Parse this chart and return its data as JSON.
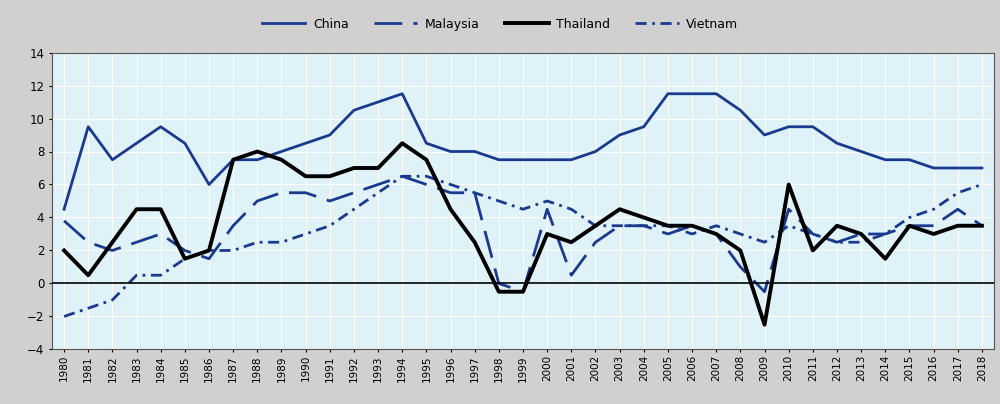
{
  "years": [
    1980,
    1981,
    1982,
    1983,
    1984,
    1985,
    1986,
    1987,
    1988,
    1989,
    1990,
    1991,
    1992,
    1993,
    1994,
    1995,
    1996,
    1997,
    1998,
    1999,
    2000,
    2001,
    2002,
    2003,
    2004,
    2005,
    2006,
    2007,
    2008,
    2009,
    2010,
    2011,
    2012,
    2013,
    2014,
    2015,
    2016,
    2017,
    2018
  ],
  "china": [
    4.5,
    9.5,
    7.5,
    8.5,
    9.5,
    8.5,
    6.0,
    7.5,
    7.5,
    8.0,
    8.5,
    9.0,
    10.5,
    11.0,
    11.5,
    8.5,
    8.0,
    8.0,
    7.5,
    7.5,
    7.5,
    7.5,
    8.0,
    9.0,
    9.5,
    11.5,
    11.5,
    11.5,
    10.5,
    9.0,
    9.5,
    9.5,
    8.5,
    8.0,
    7.5,
    7.5,
    7.0,
    7.0,
    7.0
  ],
  "malaysia": [
    3.8,
    2.5,
    2.0,
    2.5,
    3.0,
    2.0,
    1.5,
    3.5,
    5.0,
    5.5,
    5.5,
    5.0,
    5.5,
    6.0,
    6.5,
    6.0,
    5.5,
    5.5,
    0.0,
    -0.5,
    4.5,
    0.5,
    2.5,
    3.5,
    3.5,
    3.0,
    3.5,
    3.0,
    1.0,
    -0.5,
    4.5,
    3.0,
    2.5,
    3.0,
    3.0,
    3.5,
    3.5,
    4.5,
    3.5
  ],
  "thailand": [
    2.0,
    0.5,
    2.5,
    4.5,
    4.5,
    1.5,
    2.0,
    7.5,
    8.0,
    7.5,
    6.5,
    6.5,
    7.0,
    7.0,
    8.5,
    7.5,
    4.5,
    2.5,
    -0.5,
    -0.5,
    3.0,
    2.5,
    3.5,
    4.5,
    4.0,
    3.5,
    3.5,
    3.0,
    2.0,
    -2.5,
    6.0,
    2.0,
    3.5,
    3.0,
    1.5,
    3.5,
    3.0,
    3.5,
    3.5
  ],
  "vietnam": [
    -2.0,
    -1.5,
    -1.0,
    0.5,
    0.5,
    1.5,
    2.0,
    2.0,
    2.5,
    2.5,
    3.0,
    3.5,
    4.5,
    5.5,
    6.5,
    6.5,
    6.0,
    5.5,
    5.0,
    4.5,
    5.0,
    4.5,
    3.5,
    3.5,
    3.5,
    3.5,
    3.0,
    3.5,
    3.0,
    2.5,
    3.5,
    3.0,
    2.5,
    2.5,
    3.0,
    4.0,
    4.5,
    5.5,
    6.0
  ],
  "china_color": "#1a3a8f",
  "malaysia_color": "#1a3a8f",
  "thailand_color": "#000000",
  "vietnam_color": "#1a3a8f",
  "bg_color": "#dff2f8",
  "legend_bg": "#d0d0d0",
  "plot_border": "#888888",
  "ylim": [
    -4,
    14
  ],
  "yticks": [
    -4,
    -2,
    0,
    2,
    4,
    6,
    8,
    10,
    12,
    14
  ],
  "grid_color": "#ffffff"
}
